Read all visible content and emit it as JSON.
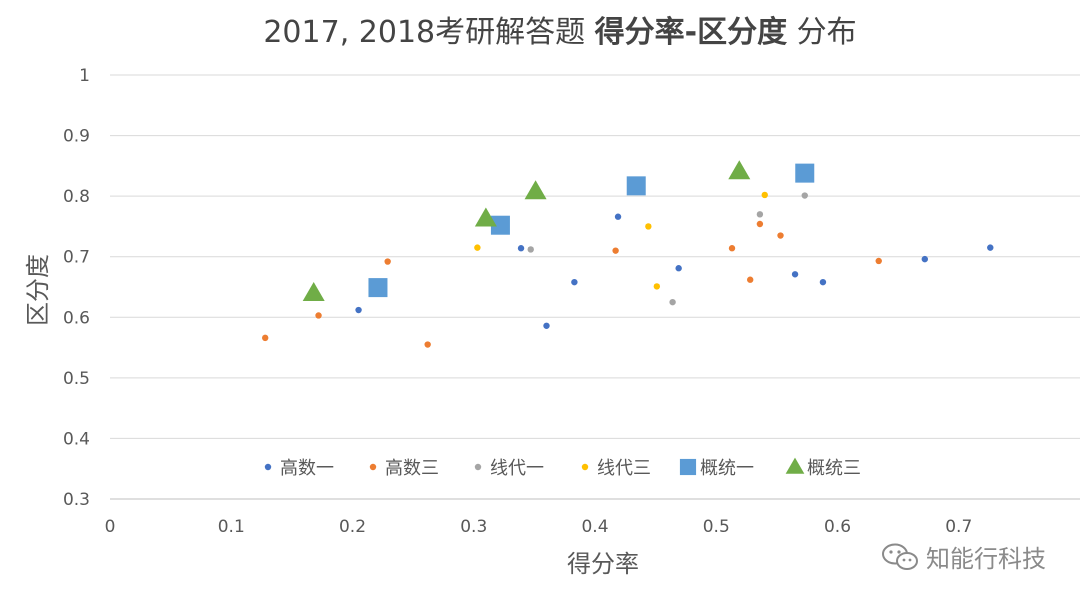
{
  "chart_data": {
    "type": "scatter",
    "title_parts": [
      {
        "text": "2017, 2018考研解答题 ",
        "bold": false
      },
      {
        "text": "得分率-区分度",
        "bold": true
      },
      {
        "text": " 分布",
        "bold": false
      }
    ],
    "xlabel": "得分率",
    "ylabel": "区分度",
    "xlim": [
      0,
      0.8
    ],
    "ylim": [
      0.3,
      1.0
    ],
    "x_ticks": [
      "0",
      "0.1",
      "0.2",
      "0.3",
      "0.4",
      "0.5",
      "0.6",
      "0.7"
    ],
    "y_ticks": [
      "0.3",
      "0.4",
      "0.5",
      "0.6",
      "0.7",
      "0.8",
      "0.9",
      "1"
    ],
    "grid": "horizontal",
    "legend_position": "bottom-inside",
    "series": [
      {
        "name": "高数一",
        "marker": "circle",
        "color": "#4472C4",
        "points": [
          [
            0.205,
            0.612
          ],
          [
            0.339,
            0.714
          ],
          [
            0.36,
            0.586
          ],
          [
            0.383,
            0.658
          ],
          [
            0.419,
            0.766
          ],
          [
            0.469,
            0.681
          ],
          [
            0.565,
            0.671
          ],
          [
            0.588,
            0.658
          ],
          [
            0.672,
            0.696
          ],
          [
            0.726,
            0.715
          ]
        ]
      },
      {
        "name": "高数三",
        "marker": "circle",
        "color": "#ED7D31",
        "points": [
          [
            0.128,
            0.566
          ],
          [
            0.172,
            0.603
          ],
          [
            0.229,
            0.692
          ],
          [
            0.262,
            0.555
          ],
          [
            0.417,
            0.71
          ],
          [
            0.513,
            0.714
          ],
          [
            0.528,
            0.662
          ],
          [
            0.536,
            0.754
          ],
          [
            0.553,
            0.735
          ],
          [
            0.634,
            0.693
          ]
        ]
      },
      {
        "name": "线代一",
        "marker": "circle",
        "color": "#A5A5A5",
        "points": [
          [
            0.347,
            0.712
          ],
          [
            0.464,
            0.625
          ],
          [
            0.536,
            0.77
          ],
          [
            0.573,
            0.801
          ]
        ]
      },
      {
        "name": "线代三",
        "marker": "circle",
        "color": "#FFC000",
        "points": [
          [
            0.303,
            0.715
          ],
          [
            0.444,
            0.75
          ],
          [
            0.451,
            0.651
          ],
          [
            0.54,
            0.802
          ]
        ]
      },
      {
        "name": "概统一",
        "marker": "square",
        "color": "#5B9BD5",
        "points": [
          [
            0.221,
            0.649
          ],
          [
            0.322,
            0.752
          ],
          [
            0.434,
            0.817
          ],
          [
            0.573,
            0.838
          ]
        ]
      },
      {
        "name": "概统三",
        "marker": "triangle",
        "color": "#70AD47",
        "points": [
          [
            0.168,
            0.64
          ],
          [
            0.31,
            0.763
          ],
          [
            0.351,
            0.808
          ],
          [
            0.519,
            0.841
          ]
        ]
      }
    ]
  },
  "watermark": {
    "text": "知能行科技",
    "icon": "wechat-icon"
  }
}
